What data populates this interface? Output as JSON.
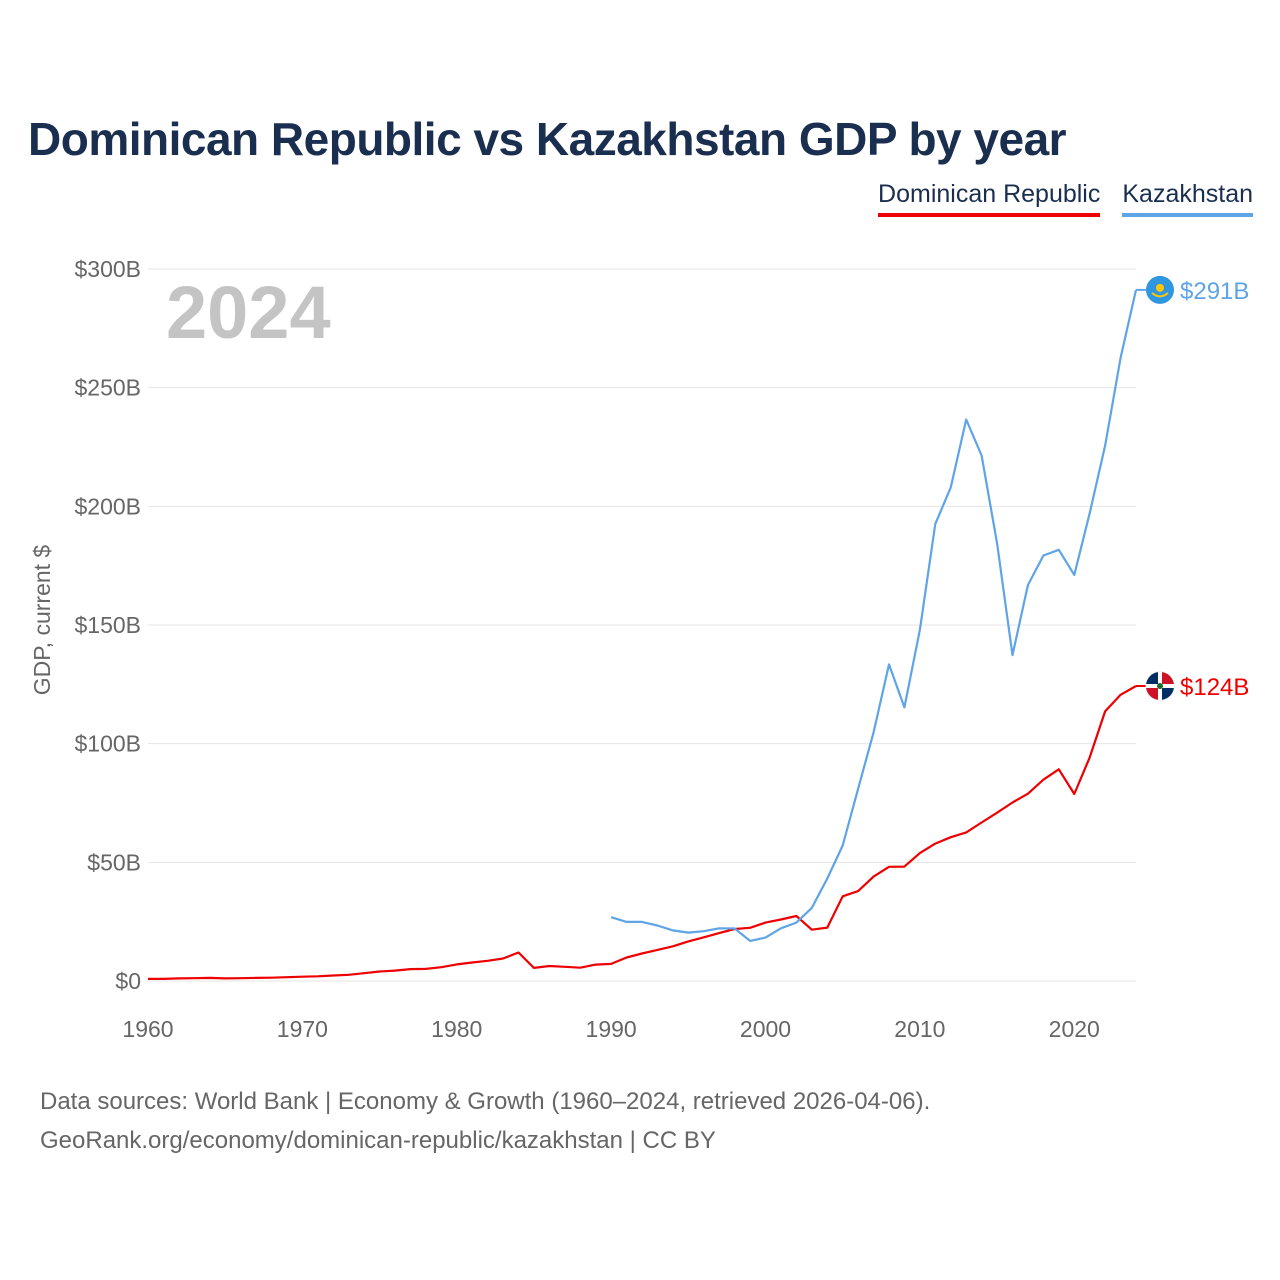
{
  "title": "Dominican Republic vs Kazakhstan GDP by year",
  "legend": {
    "dr": "Dominican Republic",
    "kz": "Kazakhstan"
  },
  "footer": {
    "line1": "Data sources: World Bank | Economy & Growth (1960–2024, retrieved 2026-04-06).",
    "line2": "GeoRank.org/economy/dominican-republic/kazakhstan | CC BY"
  },
  "colors": {
    "dr": "#ee0000",
    "kz": "#5ea4e6",
    "grid": "#e6e6e6"
  },
  "chart_data": {
    "type": "line",
    "title": "Dominican Republic vs Kazakhstan GDP by year",
    "xlabel": "",
    "ylabel": "GDP, current $",
    "year_label": "2024",
    "xlim": [
      1960,
      2024
    ],
    "ylim": [
      0,
      300
    ],
    "x_ticks": [
      1960,
      1970,
      1980,
      1990,
      2000,
      2010,
      2020
    ],
    "y_ticks": [
      0,
      50,
      100,
      150,
      200,
      250,
      300
    ],
    "y_tick_labels": [
      "$0",
      "$50B",
      "$100B",
      "$150B",
      "$200B",
      "$250B",
      "$300B"
    ],
    "grid": true,
    "legend_position": "top-right",
    "series": [
      {
        "name": "Dominican Republic",
        "end_label": "$124B",
        "points": [
          [
            1960,
            0.9
          ],
          [
            1961,
            0.9
          ],
          [
            1962,
            1.1
          ],
          [
            1963,
            1.2
          ],
          [
            1964,
            1.3
          ],
          [
            1965,
            1.1
          ],
          [
            1966,
            1.2
          ],
          [
            1967,
            1.3
          ],
          [
            1968,
            1.4
          ],
          [
            1969,
            1.6
          ],
          [
            1970,
            1.8
          ],
          [
            1971,
            2.0
          ],
          [
            1972,
            2.3
          ],
          [
            1973,
            2.6
          ],
          [
            1974,
            3.3
          ],
          [
            1975,
            4.0
          ],
          [
            1976,
            4.4
          ],
          [
            1977,
            5.0
          ],
          [
            1978,
            5.1
          ],
          [
            1979,
            5.8
          ],
          [
            1980,
            7.0
          ],
          [
            1981,
            7.8
          ],
          [
            1982,
            8.5
          ],
          [
            1983,
            9.5
          ],
          [
            1984,
            12.0
          ],
          [
            1985,
            5.5
          ],
          [
            1986,
            6.3
          ],
          [
            1987,
            6.0
          ],
          [
            1988,
            5.6
          ],
          [
            1989,
            6.9
          ],
          [
            1990,
            7.2
          ],
          [
            1991,
            9.9
          ],
          [
            1992,
            11.6
          ],
          [
            1993,
            13.1
          ],
          [
            1994,
            14.6
          ],
          [
            1995,
            16.7
          ],
          [
            1996,
            18.4
          ],
          [
            1997,
            20.2
          ],
          [
            1998,
            21.9
          ],
          [
            1999,
            22.4
          ],
          [
            2000,
            24.6
          ],
          [
            2001,
            25.9
          ],
          [
            2002,
            27.4
          ],
          [
            2003,
            21.6
          ],
          [
            2004,
            22.5
          ],
          [
            2005,
            35.7
          ],
          [
            2006,
            37.9
          ],
          [
            2007,
            44.0
          ],
          [
            2008,
            48.1
          ],
          [
            2009,
            48.2
          ],
          [
            2010,
            53.9
          ],
          [
            2011,
            57.9
          ],
          [
            2012,
            60.6
          ],
          [
            2013,
            62.6
          ],
          [
            2014,
            66.8
          ],
          [
            2015,
            70.9
          ],
          [
            2016,
            75.2
          ],
          [
            2017,
            78.9
          ],
          [
            2018,
            84.8
          ],
          [
            2019,
            89.2
          ],
          [
            2020,
            78.8
          ],
          [
            2021,
            94.2
          ],
          [
            2022,
            113.6
          ],
          [
            2023,
            120.6
          ],
          [
            2024,
            124.3
          ]
        ]
      },
      {
        "name": "Kazakhstan",
        "end_label": "$291B",
        "points": [
          [
            1990,
            26.9
          ],
          [
            1991,
            24.9
          ],
          [
            1992,
            24.9
          ],
          [
            1993,
            23.4
          ],
          [
            1994,
            21.3
          ],
          [
            1995,
            20.4
          ],
          [
            1996,
            21.0
          ],
          [
            1997,
            22.2
          ],
          [
            1998,
            22.1
          ],
          [
            1999,
            16.9
          ],
          [
            2000,
            18.3
          ],
          [
            2001,
            22.2
          ],
          [
            2002,
            24.6
          ],
          [
            2003,
            30.8
          ],
          [
            2004,
            43.2
          ],
          [
            2005,
            57.1
          ],
          [
            2006,
            81.0
          ],
          [
            2007,
            104.8
          ],
          [
            2008,
            133.4
          ],
          [
            2009,
            115.3
          ],
          [
            2010,
            148.0
          ],
          [
            2011,
            192.6
          ],
          [
            2012,
            208.0
          ],
          [
            2013,
            236.6
          ],
          [
            2014,
            221.4
          ],
          [
            2015,
            184.4
          ],
          [
            2016,
            137.3
          ],
          [
            2017,
            166.8
          ],
          [
            2018,
            179.3
          ],
          [
            2019,
            181.7
          ],
          [
            2020,
            171.1
          ],
          [
            2021,
            197.1
          ],
          [
            2022,
            225.5
          ],
          [
            2023,
            262.6
          ],
          [
            2024,
            291.2
          ]
        ]
      }
    ]
  }
}
